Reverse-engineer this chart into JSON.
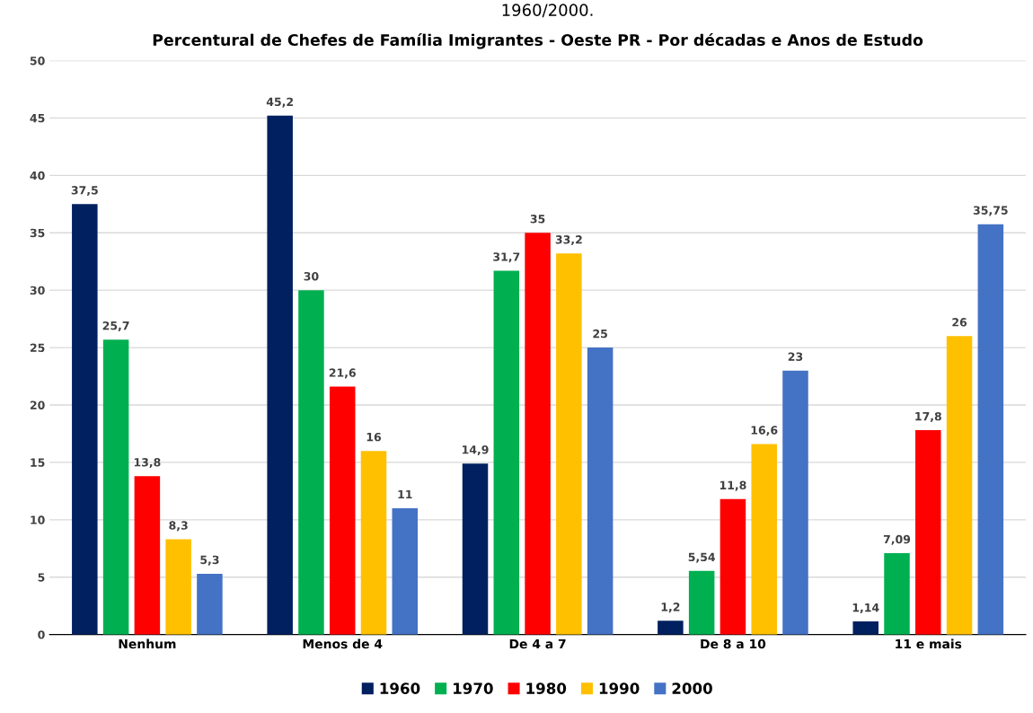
{
  "chart_data": {
    "type": "bar",
    "title": "Percentural de Chefes de Família Imigrantes - Oeste PR - Por décadas e Anos de Estudo",
    "annotations": [
      "1960/2000."
    ],
    "categories": [
      "Nenhum",
      "Menos de 4",
      "De 4 a 7",
      "De 8 a 10",
      "11 e mais"
    ],
    "series": [
      {
        "name": "1960",
        "color": "#002060",
        "values": [
          37.5,
          45.2,
          14.9,
          1.2,
          1.14
        ],
        "value_labels": [
          "37,5",
          "45,2",
          "14,9",
          "1,2",
          "1,14"
        ]
      },
      {
        "name": "1970",
        "color": "#00b050",
        "values": [
          25.7,
          30,
          31.7,
          5.54,
          7.09
        ],
        "value_labels": [
          "25,7",
          "30",
          "31,7",
          "5,54",
          "7,09"
        ]
      },
      {
        "name": "1980",
        "color": "#ff0000",
        "values": [
          13.8,
          21.6,
          35,
          11.8,
          17.8
        ],
        "value_labels": [
          "13,8",
          "21,6",
          "35",
          "11,8",
          "17,8"
        ]
      },
      {
        "name": "1990",
        "color": "#ffc000",
        "values": [
          8.3,
          16,
          33.2,
          16.6,
          26
        ],
        "value_labels": [
          "8,3",
          "16",
          "33,2",
          "16,6",
          "26"
        ]
      },
      {
        "name": "2000",
        "color": "#4472c4",
        "values": [
          5.3,
          11,
          25,
          23,
          35.75
        ],
        "value_labels": [
          "5,3",
          "11",
          "25",
          "23",
          "35,75"
        ]
      }
    ],
    "ylim": [
      0,
      50
    ],
    "yticks": [
      0,
      5,
      10,
      15,
      20,
      25,
      30,
      35,
      40,
      45,
      50
    ],
    "grid": "y",
    "legend": "bottom"
  }
}
